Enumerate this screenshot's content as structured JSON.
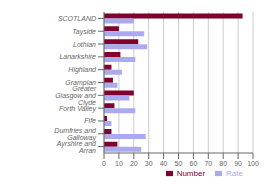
{
  "chart_data": {
    "type": "bar",
    "orientation": "horizontal",
    "categories": [
      "SCOTLAND",
      "Tayside",
      "Lothian",
      "Lanarkshire",
      "Highland",
      "Grampian",
      "Greater Glasgow and Clyde",
      "Forth Valley",
      "Fife",
      "Dumfries and Galloway",
      "Ayrshire and Arran"
    ],
    "series": [
      {
        "name": "Number",
        "color": "#800030",
        "values": [
          93,
          10,
          23,
          11,
          5,
          6,
          20,
          7,
          2,
          5,
          9
        ]
      },
      {
        "name": "Rate",
        "color": "#aaaaee",
        "values": [
          20,
          27,
          29,
          21,
          12,
          9,
          17,
          21,
          5,
          28,
          25
        ]
      }
    ],
    "xlim": [
      0,
      100
    ],
    "xticks": [
      0,
      10,
      20,
      30,
      40,
      50,
      60,
      70,
      80,
      90,
      100
    ],
    "grid": true,
    "legend": "lower right"
  }
}
